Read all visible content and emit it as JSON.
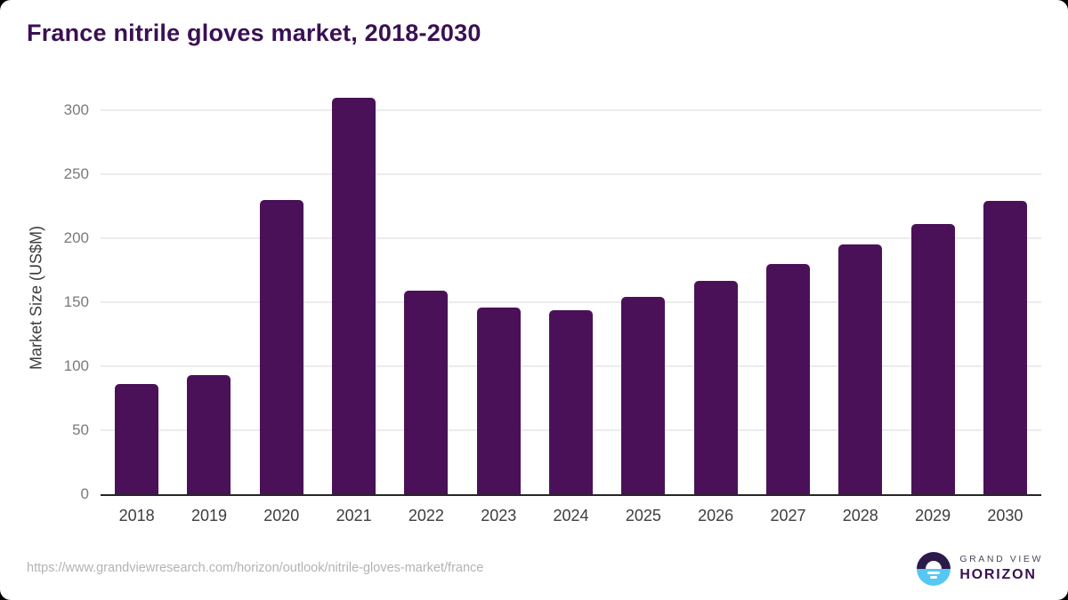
{
  "title": "France nitrile gloves market, 2018-2030",
  "source_url": "https://www.grandviewresearch.com/horizon/outlook/nitrile-gloves-market/france",
  "logo": {
    "top_text": "GRAND VIEW",
    "bottom_text": "HORIZON",
    "icon": "sunrise-circle-icon"
  },
  "colors": {
    "bar": "#4a1158",
    "title": "#3a1053",
    "axis_line": "#262626",
    "gridline": "#ebebeb",
    "tick_text": "#7a7a7a",
    "label_text": "#3d3d3d",
    "url_text": "#b3b3b3",
    "logo_navy": "#2b1b49",
    "logo_blue": "#56c7f3"
  },
  "chart_data": {
    "type": "bar",
    "title": "France nitrile gloves market, 2018-2030",
    "categories": [
      "2018",
      "2019",
      "2020",
      "2021",
      "2022",
      "2023",
      "2024",
      "2025",
      "2026",
      "2027",
      "2028",
      "2029",
      "2030"
    ],
    "values": [
      86,
      93,
      230,
      310,
      159,
      146,
      144,
      154,
      167,
      180,
      195,
      211,
      229
    ],
    "xlabel": "",
    "ylabel": "Market Size (US$M)",
    "ylim": [
      0,
      300
    ],
    "yticks": [
      0,
      50,
      100,
      150,
      200,
      250,
      300
    ],
    "grid": true,
    "legend": "none",
    "bar_color": "#4a1158"
  }
}
